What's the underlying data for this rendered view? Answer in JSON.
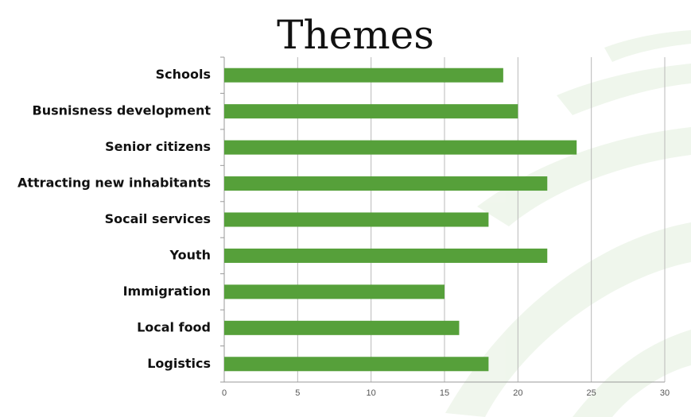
{
  "chart_data": {
    "type": "bar",
    "orientation": "horizontal",
    "title": "Themes",
    "categories": [
      "Schools",
      "Busnisness development",
      "Senior citizens",
      "Attracting new inhabitants",
      "Socail services",
      "Youth",
      "Immigration",
      "Local food",
      "Logistics"
    ],
    "values": [
      19,
      20,
      24,
      22,
      18,
      22,
      15,
      16,
      18
    ],
    "color": "#56a03a",
    "xlim": [
      0,
      30
    ],
    "xticks": [
      0,
      5,
      10,
      15,
      20,
      25,
      30
    ],
    "grid": true
  }
}
